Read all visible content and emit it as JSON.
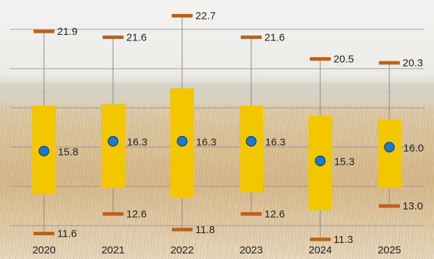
{
  "chart_data": {
    "type": "box",
    "categories": [
      "2020",
      "2021",
      "2022",
      "2023",
      "2024",
      "2025"
    ],
    "series": [
      {
        "max": [
          21.9,
          21.6,
          22.7,
          21.6,
          20.5,
          20.3
        ],
        "q3": [
          18.1,
          18.2,
          19.0,
          18.1,
          17.6,
          17.4
        ],
        "mean": [
          15.8,
          16.3,
          16.3,
          16.3,
          15.3,
          16.0
        ],
        "q1": [
          13.6,
          13.9,
          13.4,
          13.7,
          12.8,
          13.9
        ],
        "min": [
          11.6,
          12.6,
          11.8,
          12.6,
          11.3,
          13.0
        ]
      }
    ],
    "max_labels": [
      "21.9",
      "21.6",
      "22.7",
      "21.6",
      "20.5",
      "20.3"
    ],
    "mean_labels": [
      "15.8",
      "16.3",
      "16.3",
      "16.3",
      "15.3",
      "16.0"
    ],
    "min_labels": [
      "11.6",
      "12.6",
      "11.8",
      "12.6",
      "11.3",
      "13.0"
    ],
    "ylim": [
      10.3,
      23.5
    ],
    "grid": true,
    "legend": "none",
    "colors": {
      "box": "#f2c700",
      "whisker_cap": "#b8621b",
      "mean_marker": "#1f77c8",
      "mean_marker_edge": "#0d3f78",
      "whisker_line": "#888888",
      "grid": "#8a8a8a",
      "sky": "#f2f1ee",
      "field": "#d9bd8f"
    }
  }
}
